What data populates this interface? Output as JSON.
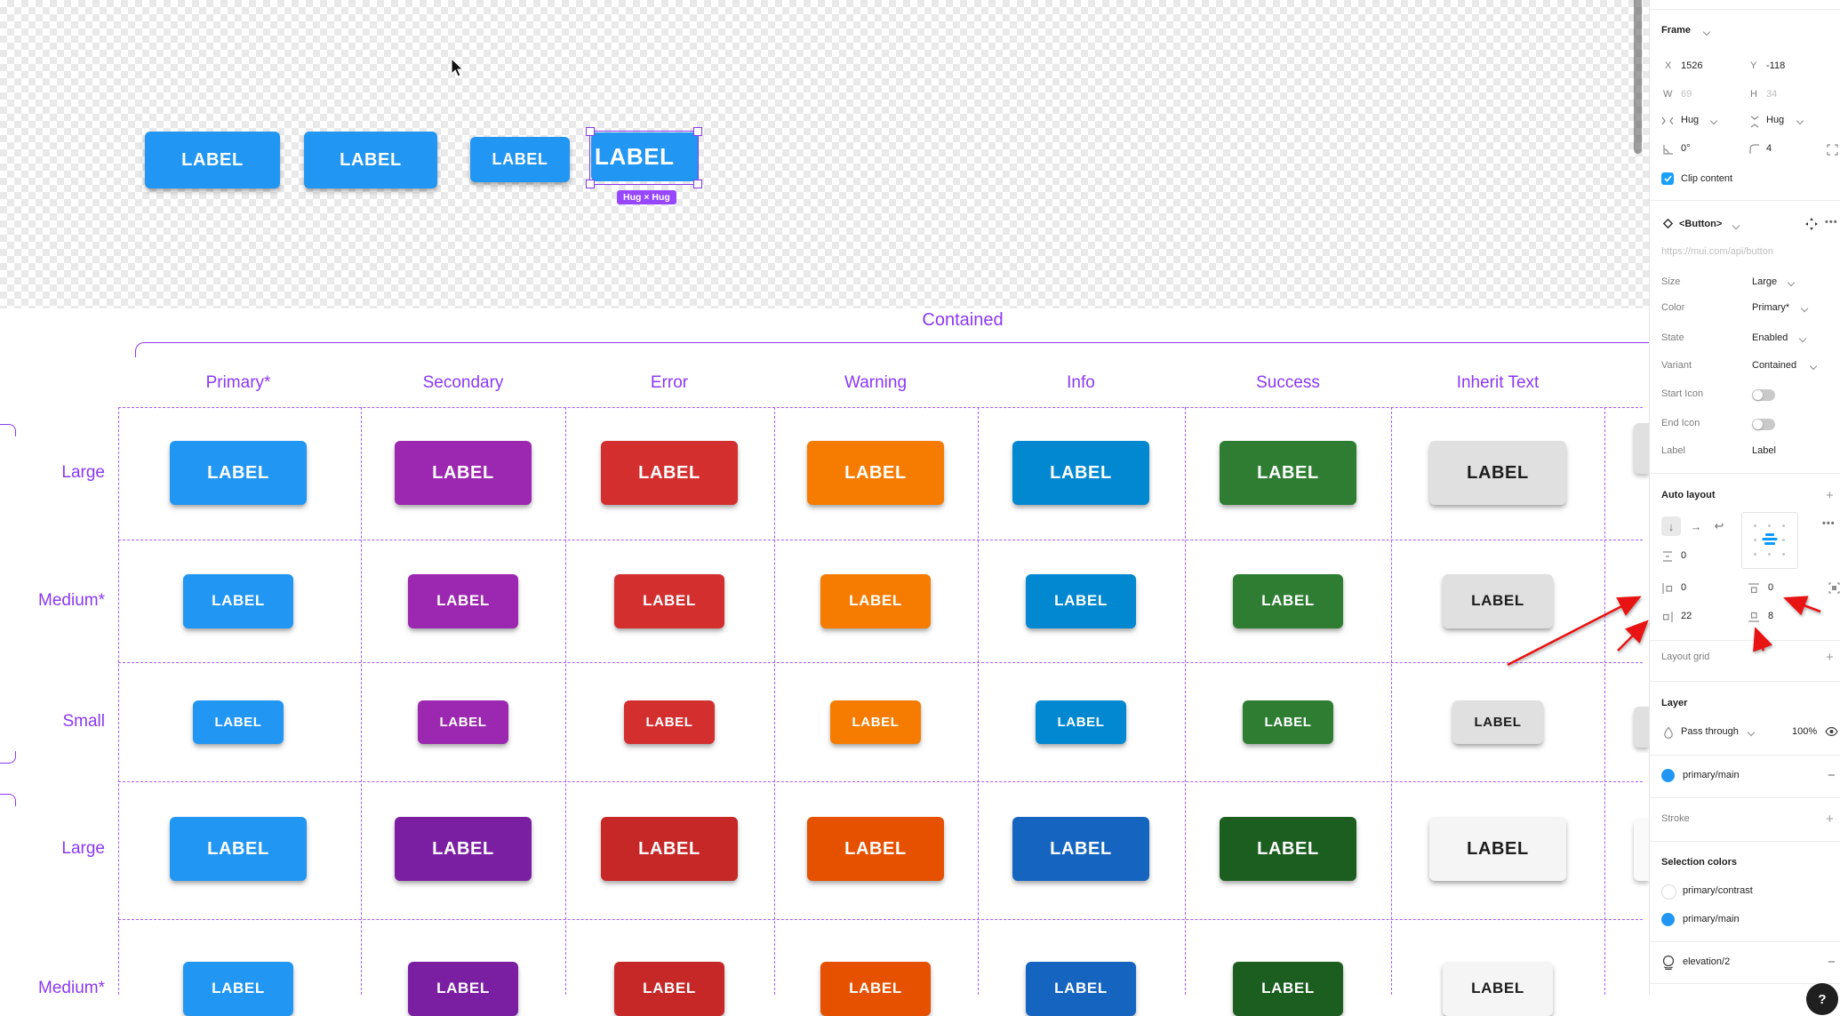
{
  "app": {
    "hug_badge": "Hug × Hug",
    "badge_color": "#9747ff",
    "selection_color": "#8638e8"
  },
  "canvas": {
    "section_title": "Contained",
    "button_label": "LABEL",
    "annotation_purple": "#8a38f4",
    "dashed_purple": "#a55bfa",
    "arrow_red": "#e81313",
    "columns": [
      "Primary*",
      "Secondary",
      "Error",
      "Warning",
      "Info",
      "Success",
      "Inherit Text"
    ],
    "rows": [
      {
        "label": "Large",
        "size": "large",
        "fills": [
          "#2196f3",
          "#9c27b0",
          "#d32f2f",
          "#f57c00",
          "#0288d1",
          "#2e7d32",
          "#e0e0e0"
        ],
        "text_colors": [
          "#ffffff",
          "#ffffff",
          "#ffffff",
          "#ffffff",
          "#ffffff",
          "#ffffff",
          "#1c1c1c"
        ]
      },
      {
        "label": "Medium*",
        "size": "medium",
        "fills": [
          "#2196f3",
          "#9c27b0",
          "#d32f2f",
          "#f57c00",
          "#0288d1",
          "#2e7d32",
          "#e0e0e0"
        ],
        "text_colors": [
          "#ffffff",
          "#ffffff",
          "#ffffff",
          "#ffffff",
          "#ffffff",
          "#ffffff",
          "#1c1c1c"
        ]
      },
      {
        "label": "Small",
        "size": "small",
        "fills": [
          "#2196f3",
          "#9c27b0",
          "#d32f2f",
          "#f57c00",
          "#0288d1",
          "#2e7d32",
          "#e0e0e0"
        ],
        "text_colors": [
          "#ffffff",
          "#ffffff",
          "#ffffff",
          "#ffffff",
          "#ffffff",
          "#ffffff",
          "#1c1c1c"
        ]
      },
      {
        "label": "Large",
        "size": "large",
        "fills": [
          "#2196f3",
          "#7b1fa2",
          "#c62828",
          "#e65100",
          "#1565c0",
          "#1b5e20",
          "#f5f5f5"
        ],
        "text_colors": [
          "#ffffff",
          "#ffffff",
          "#ffffff",
          "#ffffff",
          "#ffffff",
          "#ffffff",
          "#1c1c1c"
        ]
      },
      {
        "label": "Medium*",
        "size": "medium",
        "fills": [
          "#2196f3",
          "#7b1fa2",
          "#c62828",
          "#e65100",
          "#1565c0",
          "#1b5e20",
          "#f5f5f5"
        ],
        "text_colors": [
          "#ffffff",
          "#ffffff",
          "#ffffff",
          "#ffffff",
          "#ffffff",
          "#ffffff",
          "#1c1c1c"
        ]
      }
    ]
  },
  "panel": {
    "frame": {
      "title": "Frame",
      "x_label": "X",
      "x_value": "1526",
      "y_label": "Y",
      "y_value": "-118",
      "w_label": "W",
      "w_value": "69",
      "h_label": "H",
      "h_value": "34",
      "hug_h": "Hug",
      "hug_v": "Hug",
      "rotation": "0°",
      "radius": "4",
      "clip_label": "Clip content"
    },
    "component": {
      "name": "<Button>",
      "link": "https://mui.com/api/button",
      "size_label": "Size",
      "size_value": "Large",
      "color_label": "Color",
      "color_value": "Primary*",
      "state_label": "State",
      "state_value": "Enabled",
      "variant_label": "Variant",
      "variant_value": "Contained",
      "start_icon_label": "Start Icon",
      "end_icon_label": "End Icon",
      "label_label": "Label",
      "label_value": "Label"
    },
    "auto_layout": {
      "title": "Auto layout",
      "gap": "0",
      "pad_left": "0",
      "pad_top": "0",
      "pad_right": "22",
      "pad_bottom": "8"
    },
    "layout_grid": {
      "title": "Layout grid"
    },
    "layer": {
      "title": "Layer",
      "blend_mode": "Pass through",
      "opacity": "100%"
    },
    "fill": {
      "name": "primary/main",
      "color": "#2196f3"
    },
    "stroke": {
      "title": "Stroke"
    },
    "selection_colors": {
      "title": "Selection colors",
      "items": [
        "primary/contrast",
        "primary/main"
      ],
      "item_colors": [
        "#ffffff",
        "#2196f3"
      ],
      "style_name": "elevation/2"
    },
    "help": "?"
  }
}
